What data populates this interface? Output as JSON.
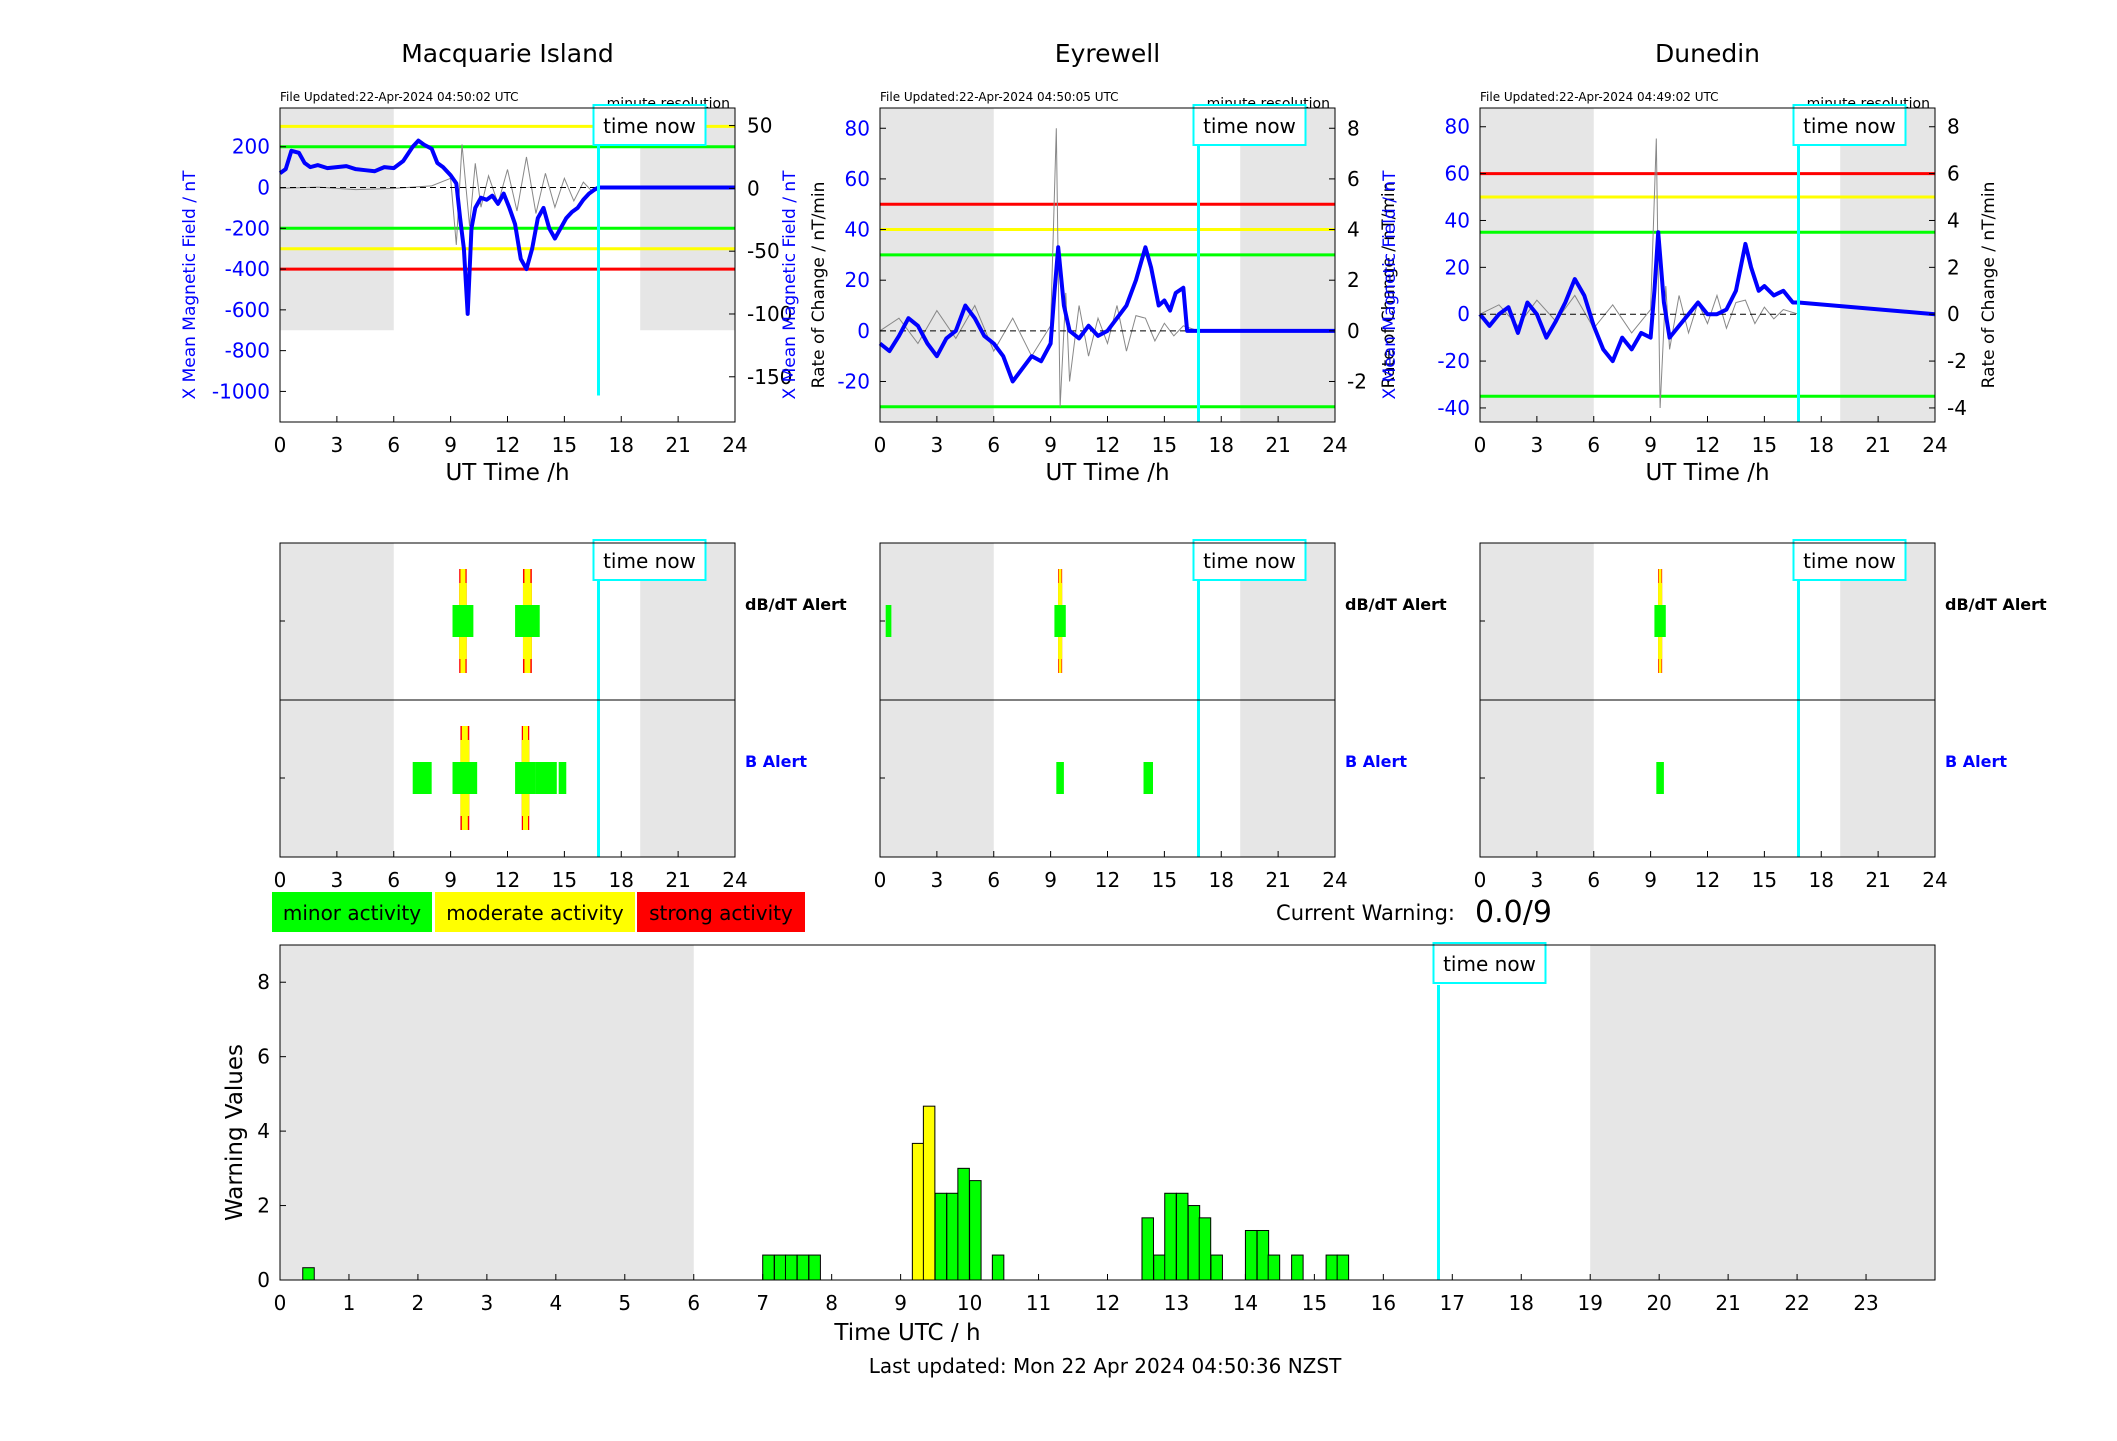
{
  "colors": {
    "minor": "#00ff00",
    "moderate": "#ffff00",
    "strong": "#ff0000",
    "field": "#0000ff",
    "time_now": "#00ffff",
    "night": "#e6e6e6",
    "rate": "#888888"
  },
  "stations": [
    {
      "name": "Macquarie Island",
      "file_updated": "File Updated:22-Apr-2024 04:50:02 UTC",
      "resolution": "minute resolution",
      "time_now_label": "time now",
      "time_now": 16.8,
      "night": [
        [
          0,
          6
        ],
        [
          19,
          24
        ]
      ],
      "ylabel_left": "X Mean Magnetic Field / nT",
      "ylabel_right": "Rate of Change / nT/min",
      "xlabel": "UT Time /h",
      "xlim": [
        0,
        24
      ],
      "xticks": [
        0,
        3,
        6,
        9,
        12,
        15,
        18,
        21,
        24
      ],
      "ylim_left": [
        -1150,
        390
      ],
      "yticks_left": [
        200,
        0,
        -200,
        -400,
        -600,
        -800,
        -1000
      ],
      "ylim_right": [
        -186,
        64
      ],
      "yticks_right": [
        50,
        0,
        -50,
        -100,
        -150
      ],
      "thresholds": [
        {
          "level": "strong",
          "values": [
            -400
          ]
        },
        {
          "level": "moderate",
          "values": [
            300,
            -300
          ]
        },
        {
          "level": "minor",
          "values": [
            200,
            -200
          ]
        }
      ],
      "field_x": [
        0,
        0.3,
        0.6,
        1,
        1.3,
        1.6,
        2,
        2.5,
        3,
        3.5,
        4,
        4.5,
        5,
        5.5,
        6,
        6.5,
        7,
        7.3,
        7.6,
        8,
        8.3,
        8.6,
        9,
        9.3,
        9.5,
        9.7,
        9.9,
        10.1,
        10.3,
        10.6,
        10.9,
        11.2,
        11.5,
        11.8,
        12.1,
        12.4,
        12.7,
        13,
        13.3,
        13.6,
        13.9,
        14.2,
        14.5,
        14.8,
        15.1,
        15.4,
        15.7,
        16,
        16.3,
        16.6,
        16.8,
        24
      ],
      "field_y": [
        70,
        90,
        180,
        170,
        120,
        100,
        110,
        95,
        100,
        105,
        90,
        85,
        80,
        100,
        95,
        130,
        200,
        230,
        210,
        190,
        120,
        100,
        60,
        20,
        -150,
        -300,
        -620,
        -200,
        -100,
        -50,
        -60,
        -40,
        -80,
        -30,
        -100,
        -180,
        -350,
        -400,
        -300,
        -150,
        -100,
        -200,
        -250,
        -200,
        -150,
        -120,
        -100,
        -60,
        -30,
        -10,
        0,
        0
      ],
      "rate_x": [
        0,
        2,
        4,
        6,
        8,
        9,
        9.3,
        9.6,
        10,
        10.3,
        10.6,
        11,
        11.5,
        12,
        12.5,
        13,
        13.5,
        14,
        14.5,
        15,
        15.5,
        16,
        16.5,
        16.8
      ],
      "rate_y": [
        0,
        1,
        -1,
        0,
        2,
        8,
        -45,
        35,
        -30,
        20,
        -15,
        10,
        -12,
        15,
        -18,
        25,
        -20,
        12,
        -15,
        8,
        -10,
        5,
        -3,
        0
      ],
      "alerts": {
        "dbdt_label": "dB/dT Alert",
        "b_label": "B Alert",
        "dbdt": [
          {
            "start": 9.1,
            "end": 10.2,
            "level": 3
          },
          {
            "start": 12.4,
            "end": 13.7,
            "level": 3
          }
        ],
        "b": [
          {
            "start": 7.0,
            "end": 8.0,
            "level": 1
          },
          {
            "start": 9.1,
            "end": 10.4,
            "level": 3
          },
          {
            "start": 12.4,
            "end": 13.5,
            "level": 3
          },
          {
            "start": 13.5,
            "end": 14.6,
            "level": 1
          },
          {
            "start": 14.7,
            "end": 15.1,
            "level": 1
          }
        ]
      }
    },
    {
      "name": "Eyrewell",
      "file_updated": "File Updated:22-Apr-2024 04:50:05 UTC",
      "resolution": "minute resolution",
      "time_now_label": "time now",
      "time_now": 16.8,
      "night": [
        [
          0,
          6
        ],
        [
          19,
          24
        ]
      ],
      "ylabel_left": "X Mean Magnetic Field / nT",
      "ylabel_right": "Rate of Change / nT/min",
      "xlabel": "UT Time /h",
      "xlim": [
        0,
        24
      ],
      "xticks": [
        0,
        3,
        6,
        9,
        12,
        15,
        18,
        21,
        24
      ],
      "ylim_left": [
        -36,
        88
      ],
      "yticks_left": [
        80,
        60,
        40,
        20,
        0,
        -20
      ],
      "ylim_right": [
        -3.6,
        8.8
      ],
      "yticks_right": [
        8,
        6,
        4,
        2,
        0,
        -2
      ],
      "thresholds": [
        {
          "level": "strong",
          "values": [
            50
          ]
        },
        {
          "level": "moderate",
          "values": [
            40
          ]
        },
        {
          "level": "minor",
          "values": [
            30,
            -30
          ]
        }
      ],
      "field_x": [
        0,
        0.5,
        1,
        1.5,
        2,
        2.5,
        3,
        3.5,
        4,
        4.5,
        5,
        5.5,
        6,
        6.5,
        7,
        7.5,
        8,
        8.5,
        9,
        9.2,
        9.4,
        9.7,
        10,
        10.5,
        11,
        11.5,
        12,
        12.5,
        13,
        13.5,
        14,
        14.3,
        14.7,
        15,
        15.3,
        15.6,
        16,
        16.2,
        16.8,
        24
      ],
      "field_y": [
        -5,
        -8,
        -2,
        5,
        2,
        -5,
        -10,
        -3,
        0,
        10,
        5,
        -2,
        -5,
        -10,
        -20,
        -15,
        -10,
        -12,
        -5,
        15,
        33,
        10,
        0,
        -3,
        2,
        -2,
        0,
        5,
        10,
        20,
        33,
        25,
        10,
        12,
        8,
        15,
        17,
        0,
        0,
        0
      ],
      "rate_x": [
        0,
        1,
        2,
        3,
        4,
        5,
        6,
        7,
        8,
        9,
        9.3,
        9.5,
        9.8,
        10,
        10.5,
        11,
        11.5,
        12,
        12.5,
        13,
        13.5,
        14,
        14.5,
        15,
        15.5,
        16,
        16.8
      ],
      "rate_y": [
        0,
        0.5,
        -0.5,
        0.8,
        -0.3,
        1,
        -0.8,
        0.5,
        -1,
        0.2,
        8,
        -3,
        1.5,
        -2,
        1,
        -1,
        0.5,
        -0.5,
        1,
        -0.8,
        0.6,
        0.5,
        -0.4,
        0.3,
        -0.2,
        0.2,
        0
      ],
      "alerts": {
        "dbdt_label": "dB/dT Alert",
        "b_label": "B Alert",
        "dbdt": [
          {
            "start": 0.3,
            "end": 0.6,
            "level": 1
          },
          {
            "start": 9.2,
            "end": 9.8,
            "level": 3
          }
        ],
        "b": [
          {
            "start": 9.3,
            "end": 9.7,
            "level": 1
          },
          {
            "start": 13.9,
            "end": 14.4,
            "level": 1
          }
        ]
      }
    },
    {
      "name": "Dunedin",
      "file_updated": "File Updated:22-Apr-2024 04:49:02 UTC",
      "resolution": "minute resolution",
      "time_now_label": "time now",
      "time_now": 16.8,
      "night": [
        [
          0,
          6
        ],
        [
          19,
          24
        ]
      ],
      "ylabel_left": "X Mean Magnetic Field / nT",
      "ylabel_right": "Rate of Change / nT/min",
      "xlabel": "UT Time /h",
      "xlim": [
        0,
        24
      ],
      "xticks": [
        0,
        3,
        6,
        9,
        12,
        15,
        18,
        21,
        24
      ],
      "ylim_left": [
        -46,
        88
      ],
      "yticks_left": [
        80,
        60,
        40,
        20,
        0,
        -20,
        -40
      ],
      "ylim_right": [
        -4.6,
        8.8
      ],
      "yticks_right": [
        8,
        6,
        4,
        2,
        0,
        -2,
        -4
      ],
      "thresholds": [
        {
          "level": "strong",
          "values": [
            60
          ]
        },
        {
          "level": "moderate",
          "values": [
            50
          ]
        },
        {
          "level": "minor",
          "values": [
            35,
            -35
          ]
        }
      ],
      "field_x": [
        0,
        0.5,
        1,
        1.5,
        2,
        2.5,
        3,
        3.5,
        4,
        4.5,
        5,
        5.5,
        6,
        6.5,
        7,
        7.5,
        8,
        8.5,
        9,
        9.2,
        9.4,
        9.7,
        10,
        10.5,
        11,
        11.5,
        12,
        12.5,
        13,
        13.5,
        14,
        14.3,
        14.7,
        15,
        15.5,
        16,
        16.5,
        16.8,
        24
      ],
      "field_y": [
        0,
        -5,
        0,
        3,
        -8,
        5,
        0,
        -10,
        -3,
        5,
        15,
        8,
        -5,
        -15,
        -20,
        -10,
        -15,
        -8,
        -10,
        10,
        35,
        5,
        -10,
        -5,
        0,
        5,
        0,
        0,
        2,
        10,
        30,
        20,
        10,
        12,
        8,
        10,
        5,
        5,
        0
      ],
      "rate_x": [
        0,
        1,
        2,
        3,
        4,
        5,
        6,
        7,
        8,
        9,
        9.3,
        9.5,
        9.8,
        10,
        10.5,
        11,
        11.5,
        12,
        12.5,
        13,
        13.5,
        14,
        14.5,
        15,
        15.5,
        16,
        16.8
      ],
      "rate_y": [
        0,
        0.4,
        -0.5,
        0.6,
        -0.3,
        0.8,
        -0.6,
        0.4,
        -0.8,
        0.2,
        7.5,
        -4,
        1.2,
        -1.5,
        0.8,
        -0.8,
        0.5,
        -0.4,
        0.8,
        -0.6,
        0.5,
        0.6,
        -0.4,
        0.3,
        -0.2,
        0.2,
        0
      ],
      "alerts": {
        "dbdt_label": "dB/dT Alert",
        "b_label": "B Alert",
        "dbdt": [
          {
            "start": 9.2,
            "end": 9.8,
            "level": 3
          }
        ],
        "b": [
          {
            "start": 9.3,
            "end": 9.7,
            "level": 1
          }
        ]
      }
    }
  ],
  "legend": {
    "minor": "minor activity",
    "moderate": "moderate activity",
    "strong": "strong activity"
  },
  "current_warning": {
    "label": "Current Warning:",
    "value": "0.0/9"
  },
  "chart_data": {
    "type": "bar",
    "title": "",
    "xlabel": "Time UTC / h",
    "ylabel": "Warning Values",
    "xlim": [
      0,
      24
    ],
    "ylim": [
      0,
      9
    ],
    "xticks": [
      0,
      1,
      2,
      3,
      4,
      5,
      6,
      7,
      8,
      9,
      10,
      11,
      12,
      13,
      14,
      15,
      16,
      17,
      18,
      19,
      20,
      21,
      22,
      23
    ],
    "yticks": [
      0,
      2,
      4,
      6,
      8
    ],
    "time_now": 16.8,
    "time_now_label": "time now",
    "night": [
      [
        0,
        6
      ],
      [
        19,
        24
      ]
    ],
    "bar_width": 0.1667,
    "bars": [
      {
        "x": 0.33,
        "value": 0.33,
        "level": "minor"
      },
      {
        "x": 7.0,
        "value": 0.67,
        "level": "minor"
      },
      {
        "x": 7.17,
        "value": 0.67,
        "level": "minor"
      },
      {
        "x": 7.33,
        "value": 0.67,
        "level": "minor"
      },
      {
        "x": 7.5,
        "value": 0.67,
        "level": "minor"
      },
      {
        "x": 7.67,
        "value": 0.67,
        "level": "minor"
      },
      {
        "x": 9.17,
        "value": 3.67,
        "level": "moderate"
      },
      {
        "x": 9.33,
        "value": 4.67,
        "level": "moderate"
      },
      {
        "x": 9.5,
        "value": 2.33,
        "level": "minor"
      },
      {
        "x": 9.67,
        "value": 2.33,
        "level": "minor"
      },
      {
        "x": 9.83,
        "value": 3.0,
        "level": "minor"
      },
      {
        "x": 10.0,
        "value": 2.67,
        "level": "minor"
      },
      {
        "x": 10.33,
        "value": 0.67,
        "level": "minor"
      },
      {
        "x": 12.5,
        "value": 1.67,
        "level": "minor"
      },
      {
        "x": 12.67,
        "value": 0.67,
        "level": "minor"
      },
      {
        "x": 12.83,
        "value": 2.33,
        "level": "minor"
      },
      {
        "x": 13.0,
        "value": 2.33,
        "level": "minor"
      },
      {
        "x": 13.17,
        "value": 2.0,
        "level": "minor"
      },
      {
        "x": 13.33,
        "value": 1.67,
        "level": "minor"
      },
      {
        "x": 13.5,
        "value": 0.67,
        "level": "minor"
      },
      {
        "x": 14.0,
        "value": 1.33,
        "level": "minor"
      },
      {
        "x": 14.17,
        "value": 1.33,
        "level": "minor"
      },
      {
        "x": 14.33,
        "value": 0.67,
        "level": "minor"
      },
      {
        "x": 14.67,
        "value": 0.67,
        "level": "minor"
      },
      {
        "x": 15.17,
        "value": 0.67,
        "level": "minor"
      },
      {
        "x": 15.33,
        "value": 0.67,
        "level": "minor"
      }
    ]
  },
  "last_updated": "Last updated: Mon 22 Apr 2024 04:50:36 NZST"
}
